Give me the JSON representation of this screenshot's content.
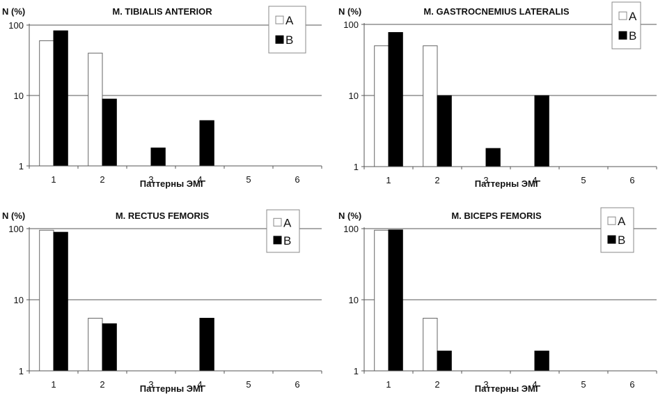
{
  "chart_data": [
    {
      "type": "bar",
      "title": "M. TIBIALIS ANTERIOR",
      "ylabel": "N (%)",
      "xlabel": "Паттерны ЭМГ",
      "yscale": "log",
      "ylim": [
        1,
        100
      ],
      "yticks": [
        "1",
        "10",
        "100"
      ],
      "categories": [
        "1",
        "2",
        "3",
        "4",
        "5",
        "6"
      ],
      "grid": true,
      "legend_position": "top-right",
      "series": [
        {
          "name": "A",
          "color": "#ffffff",
          "values": [
            60,
            40,
            null,
            null,
            null,
            null
          ]
        },
        {
          "name": "B",
          "color": "#000000",
          "values": [
            83,
            8.9,
            1.8,
            4.4,
            null,
            null
          ]
        }
      ]
    },
    {
      "type": "bar",
      "title": "M. GASTROCNEMIUS LATERALIS",
      "ylabel": "N (%)",
      "xlabel": "Паттерны ЭМГ",
      "yscale": "log",
      "ylim": [
        1,
        100
      ],
      "yticks": [
        "1",
        "10",
        "100"
      ],
      "categories": [
        "1",
        "2",
        "3",
        "4",
        "5",
        "6"
      ],
      "grid": true,
      "legend_position": "top-right",
      "series": [
        {
          "name": "A",
          "color": "#ffffff",
          "values": [
            50,
            50,
            null,
            null,
            null,
            null
          ]
        },
        {
          "name": "B",
          "color": "#000000",
          "values": [
            77,
            10,
            1.8,
            10,
            null,
            null
          ]
        }
      ]
    },
    {
      "type": "bar",
      "title": "M. RECTUS FEMORIS",
      "ylabel": "N (%)",
      "xlabel": "Паттерны ЭМГ",
      "yscale": "log",
      "ylim": [
        1,
        100
      ],
      "yticks": [
        "1",
        "10",
        "100"
      ],
      "categories": [
        "1",
        "2",
        "3",
        "4",
        "5",
        "6"
      ],
      "grid": true,
      "legend_position": "top-right",
      "series": [
        {
          "name": "A",
          "color": "#ffffff",
          "values": [
            95,
            5.5,
            null,
            null,
            null,
            null
          ]
        },
        {
          "name": "B",
          "color": "#000000",
          "values": [
            89,
            4.6,
            null,
            5.5,
            null,
            null
          ]
        }
      ]
    },
    {
      "type": "bar",
      "title": "M. BICEPS FEMORIS",
      "ylabel": "N (%)",
      "xlabel": "Паттерны ЭМГ",
      "yscale": "log",
      "ylim": [
        1,
        100
      ],
      "yticks": [
        "1",
        "10",
        "100"
      ],
      "categories": [
        "1",
        "2",
        "3",
        "4",
        "5",
        "6"
      ],
      "grid": true,
      "legend_position": "top-right",
      "series": [
        {
          "name": "A",
          "color": "#ffffff",
          "values": [
            95,
            5.5,
            null,
            null,
            null,
            null
          ]
        },
        {
          "name": "B",
          "color": "#000000",
          "values": [
            96,
            1.9,
            null,
            1.9,
            null,
            null
          ]
        }
      ]
    }
  ]
}
